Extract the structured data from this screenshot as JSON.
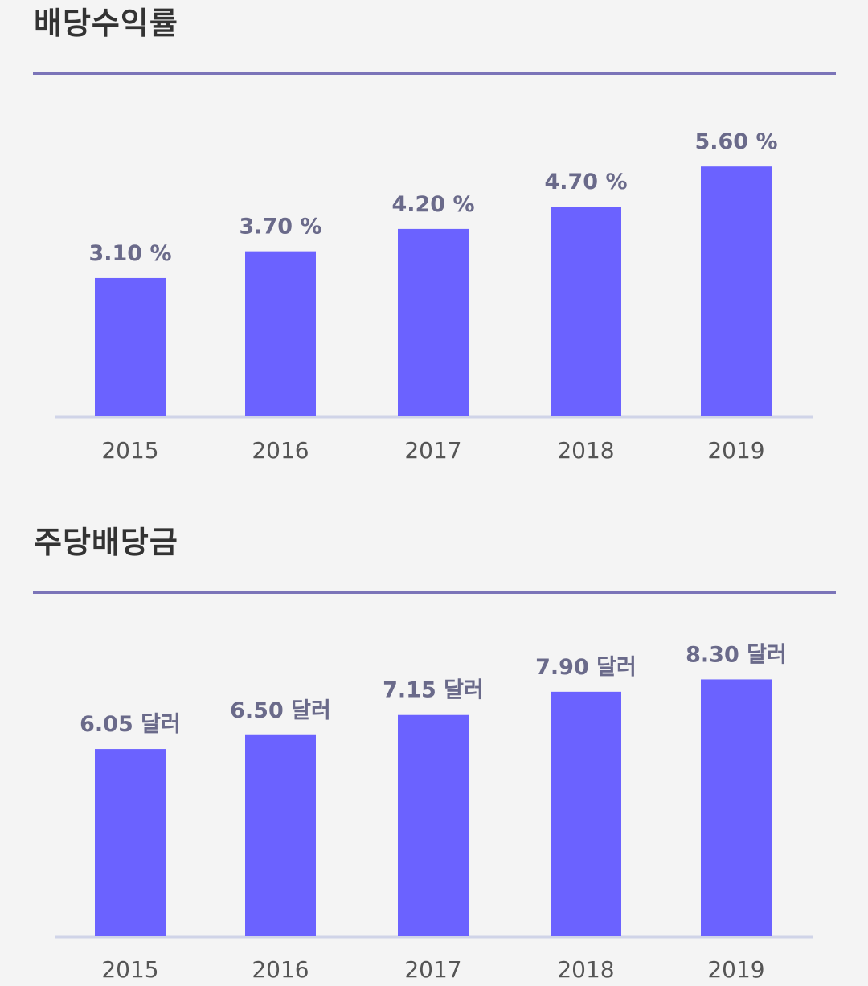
{
  "chart_data": [
    {
      "type": "bar",
      "title": "배당수익률",
      "categories": [
        "2015",
        "2016",
        "2017",
        "2018",
        "2019"
      ],
      "values": [
        3.1,
        3.7,
        4.2,
        4.7,
        5.6
      ],
      "value_labels": [
        "3.10 %",
        "3.70 %",
        "4.20 %",
        "4.70 %",
        "5.60 %"
      ],
      "bar_color": "#6b62ff",
      "axis_color": "#d0d4e8"
    },
    {
      "type": "bar",
      "title": "주당배당금",
      "categories": [
        "2015",
        "2016",
        "2017",
        "2018",
        "2019"
      ],
      "values": [
        6.05,
        6.5,
        7.15,
        7.9,
        8.3
      ],
      "value_labels": [
        "6.05 달러",
        "6.50 달러",
        "7.15 달러",
        "7.90 달러",
        "8.30 달러"
      ],
      "bar_color": "#6b62ff",
      "axis_color": "#d0d4e8"
    }
  ]
}
